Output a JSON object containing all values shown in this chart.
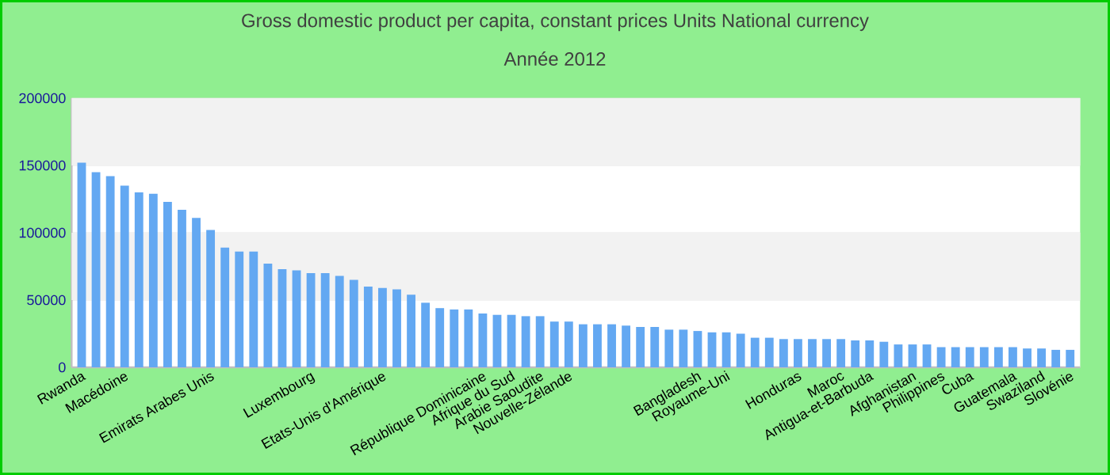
{
  "chart_data": {
    "type": "bar",
    "title": "Gross domestic product per capita, constant prices Units National currency",
    "subtitle": "Année 2012",
    "categories": [
      "Rwanda",
      null,
      null,
      "Macédoine",
      null,
      null,
      null,
      null,
      null,
      "Emirats Arabes Unis",
      null,
      null,
      null,
      null,
      null,
      null,
      "Luxembourg",
      null,
      null,
      null,
      null,
      "Etats-Unis d'Amérique",
      null,
      null,
      null,
      null,
      null,
      null,
      "République Dominicaine",
      null,
      "Afrique du Sud",
      null,
      "Arabie Saoudite",
      null,
      "Nouvelle-Zélande",
      null,
      null,
      null,
      null,
      null,
      null,
      null,
      null,
      "Bangladesh",
      null,
      "Royaume-Uni",
      null,
      null,
      null,
      null,
      "Honduras",
      null,
      null,
      "Maroc",
      null,
      "Antigua-et-Barbuda",
      null,
      null,
      "Afghanistan",
      null,
      "Philippines",
      null,
      "Cuba",
      null,
      null,
      "Guatemala",
      null,
      "Swaziland",
      null,
      "Slovénie"
    ],
    "values": [
      152000,
      145000,
      142000,
      135000,
      130000,
      129000,
      123000,
      117000,
      111000,
      102000,
      89000,
      86000,
      86000,
      77000,
      73000,
      72000,
      70000,
      70000,
      68000,
      65000,
      60000,
      59000,
      58000,
      54000,
      48000,
      44000,
      43000,
      43000,
      40000,
      39000,
      39000,
      38000,
      38000,
      34000,
      34000,
      32000,
      32000,
      32000,
      31000,
      30000,
      30000,
      28000,
      28000,
      27000,
      26000,
      26000,
      25000,
      22000,
      22000,
      21000,
      21000,
      21000,
      21000,
      21000,
      20000,
      20000,
      19000,
      17000,
      17000,
      17000,
      15000,
      15000,
      15000,
      15000,
      15000,
      15000,
      14000,
      14000,
      13000,
      13000
    ],
    "color": "#63a8f2",
    "ylim": [
      0,
      200000
    ],
    "yticks": [
      0,
      50000,
      100000,
      150000,
      200000
    ],
    "grid": "y"
  }
}
